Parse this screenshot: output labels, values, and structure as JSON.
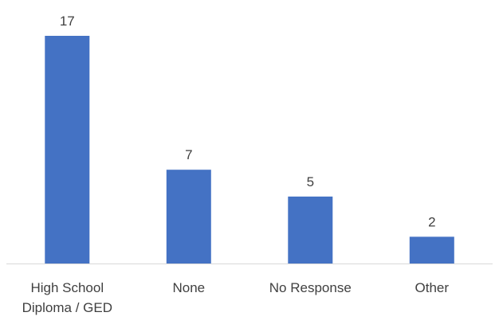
{
  "chart_data": {
    "type": "bar",
    "title": "",
    "xlabel": "",
    "ylabel": "",
    "categories": [
      [
        "High School",
        "Diploma / GED"
      ],
      [
        "None"
      ],
      [
        "No Response"
      ],
      [
        "Other"
      ]
    ],
    "values": [
      17,
      7,
      5,
      2
    ],
    "ylim": [
      0,
      17
    ],
    "grid": false,
    "legend": "none",
    "colors": {
      "bar": "#4472C4",
      "axis": "#D9D9D9",
      "text": "#404040"
    }
  }
}
